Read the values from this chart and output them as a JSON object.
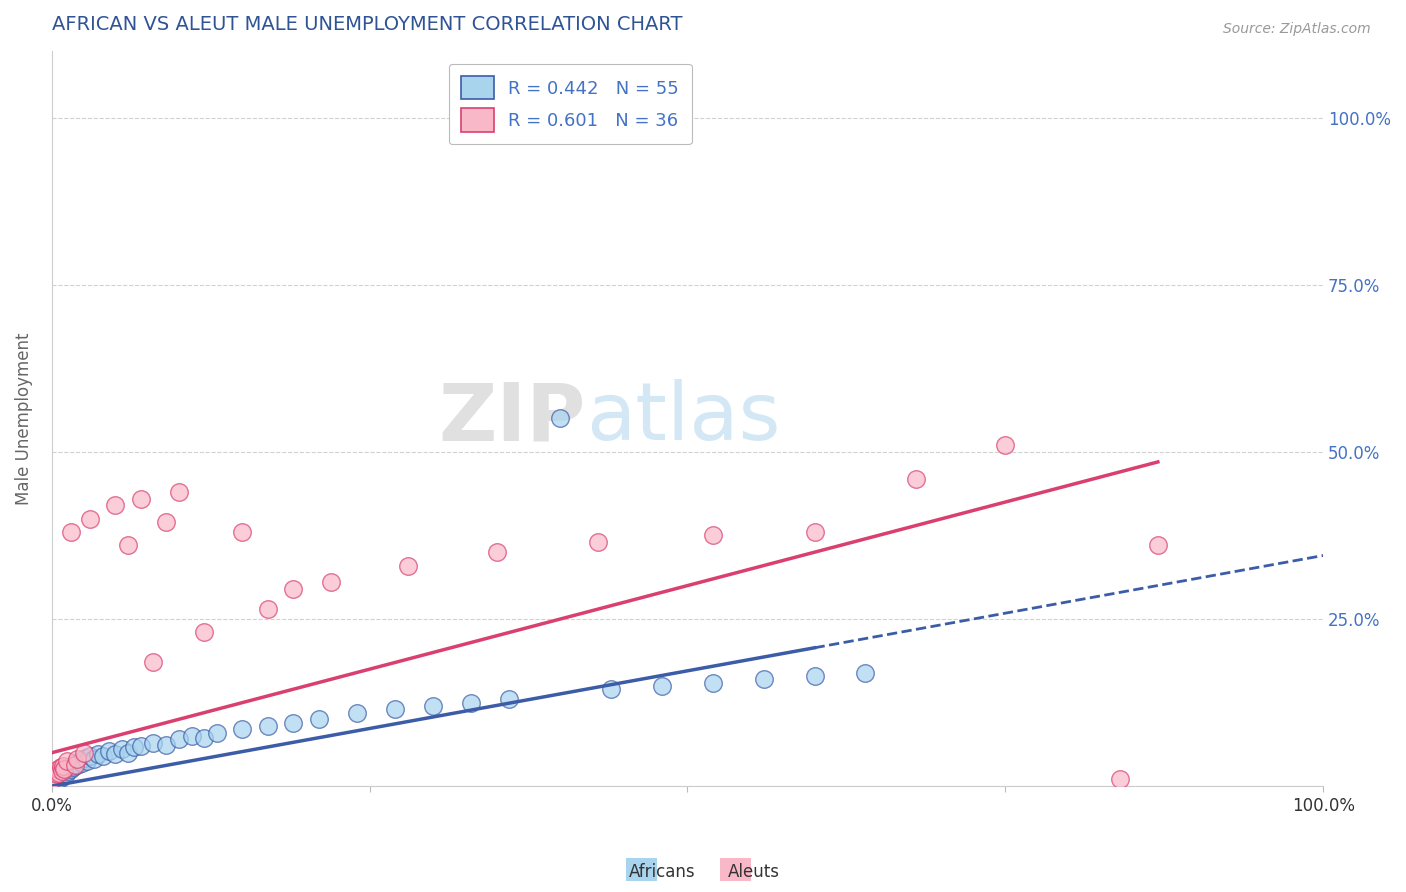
{
  "title": "AFRICAN VS ALEUT MALE UNEMPLOYMENT CORRELATION CHART",
  "source": "Source: ZipAtlas.com",
  "ylabel": "Male Unemployment",
  "legend_africans": "Africans",
  "legend_aleuts": "Aleuts",
  "african_R": "0.442",
  "african_N": "55",
  "aleut_R": "0.601",
  "aleut_N": "36",
  "watermark_zip": "ZIP",
  "watermark_atlas": "atlas",
  "african_color": "#A8D4EE",
  "aleut_color": "#F9B8C8",
  "african_line_color": "#3C5CA8",
  "aleut_line_color": "#D94070",
  "africans_x": [
    0.001,
    0.002,
    0.003,
    0.004,
    0.005,
    0.006,
    0.007,
    0.008,
    0.009,
    0.01,
    0.011,
    0.012,
    0.013,
    0.014,
    0.015,
    0.016,
    0.017,
    0.018,
    0.02,
    0.022,
    0.024,
    0.026,
    0.028,
    0.03,
    0.033,
    0.036,
    0.04,
    0.045,
    0.05,
    0.055,
    0.06,
    0.065,
    0.07,
    0.08,
    0.09,
    0.1,
    0.11,
    0.12,
    0.13,
    0.15,
    0.17,
    0.19,
    0.21,
    0.24,
    0.27,
    0.3,
    0.33,
    0.36,
    0.4,
    0.44,
    0.48,
    0.52,
    0.56,
    0.6,
    0.64
  ],
  "africans_y": [
    0.005,
    0.01,
    0.008,
    0.012,
    0.01,
    0.015,
    0.012,
    0.018,
    0.015,
    0.02,
    0.018,
    0.025,
    0.022,
    0.028,
    0.025,
    0.03,
    0.028,
    0.035,
    0.032,
    0.038,
    0.035,
    0.042,
    0.038,
    0.045,
    0.04,
    0.048,
    0.045,
    0.052,
    0.048,
    0.055,
    0.05,
    0.058,
    0.06,
    0.065,
    0.062,
    0.07,
    0.075,
    0.072,
    0.08,
    0.085,
    0.09,
    0.095,
    0.1,
    0.11,
    0.115,
    0.12,
    0.125,
    0.13,
    0.55,
    0.145,
    0.15,
    0.155,
    0.16,
    0.165,
    0.17
  ],
  "aleuts_x": [
    0.001,
    0.002,
    0.003,
    0.004,
    0.005,
    0.006,
    0.007,
    0.008,
    0.009,
    0.01,
    0.012,
    0.015,
    0.018,
    0.02,
    0.025,
    0.03,
    0.05,
    0.06,
    0.07,
    0.08,
    0.09,
    0.1,
    0.12,
    0.15,
    0.17,
    0.19,
    0.22,
    0.28,
    0.35,
    0.43,
    0.52,
    0.6,
    0.68,
    0.75,
    0.84,
    0.87
  ],
  "aleuts_y": [
    0.01,
    0.015,
    0.02,
    0.018,
    0.025,
    0.02,
    0.028,
    0.022,
    0.03,
    0.025,
    0.038,
    0.38,
    0.032,
    0.04,
    0.05,
    0.4,
    0.42,
    0.36,
    0.43,
    0.185,
    0.395,
    0.44,
    0.23,
    0.38,
    0.265,
    0.295,
    0.305,
    0.33,
    0.35,
    0.365,
    0.375,
    0.38,
    0.46,
    0.51,
    0.01,
    0.36
  ],
  "xlim": [
    0.0,
    1.0
  ],
  "ylim": [
    0.0,
    1.1
  ],
  "title_color": "#2F5496",
  "title_fontsize": 14,
  "axis_label_color": "#666666",
  "tick_color": "#4472C4",
  "source_color": "#999999"
}
